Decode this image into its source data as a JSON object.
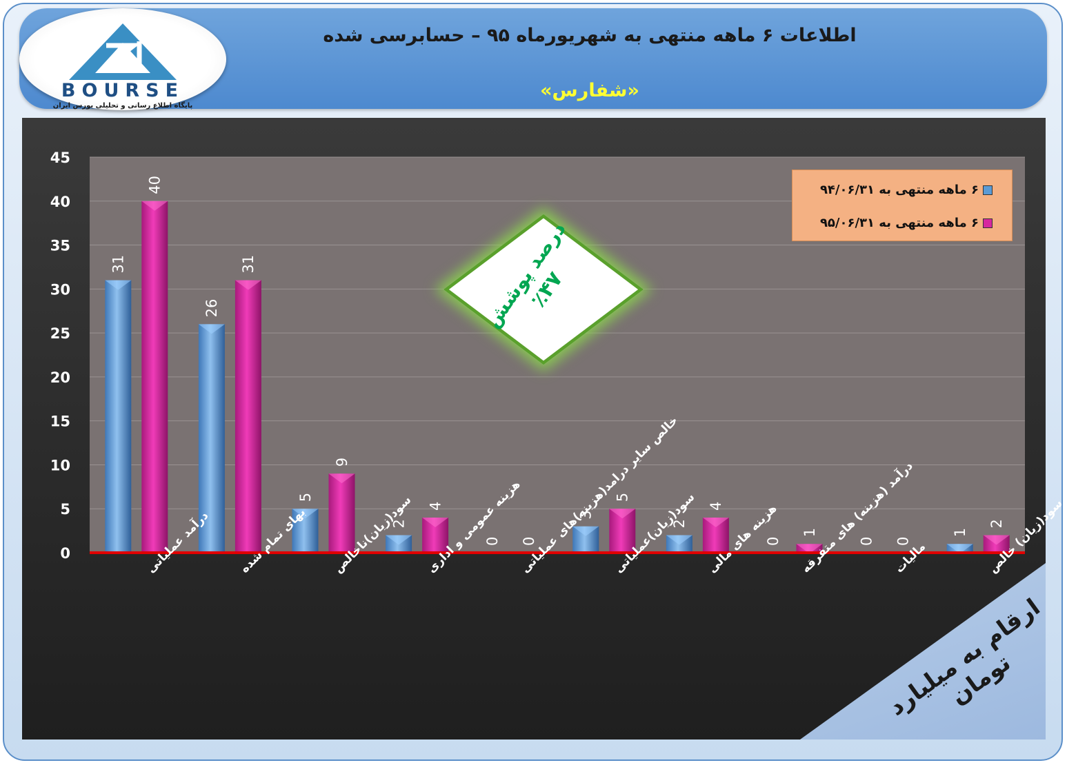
{
  "header": {
    "title": "اطلاعات ۶  ماهه منتهی به شهریورماه ۹۵ – حسابرسی شده",
    "subtitle": "«شفارس»"
  },
  "logo": {
    "word": "BOURSE",
    "tagline": "پایگاه اطلاع رسانی و تحلیلی بورس ایران"
  },
  "badge": {
    "line1": "درصد پوشش",
    "line2": "٪۴۷"
  },
  "corner_note": "ارقام به میلیارد تومان",
  "colors": {
    "series1": "#5b9bd5",
    "series2": "#d6279f",
    "baseline": "#e00000",
    "plot_bg": "#7a7272",
    "legend_bg": "#f4b183"
  },
  "chart_data": {
    "type": "bar",
    "ylim": [
      0,
      45
    ],
    "yticks": [
      0,
      5,
      10,
      15,
      20,
      25,
      30,
      35,
      40,
      45
    ],
    "grid": true,
    "legend_position": "top-right",
    "categories": [
      "درآمد عملیاتی",
      "بهای تمام شده",
      "سود(زیان)ناخالص",
      "هزینه عمومی و اداری",
      "خالص سایر درامد(هزینه)های عملیاتی",
      "سود(زیان)عملیاتی",
      "هزینه های مالی",
      "درآمد (هزینه) های متفرقه",
      "مالیات",
      "سود(زیان) خالص"
    ],
    "series": [
      {
        "name": "۶ ماهه منتهی به ۹۴/۰۶/۳۱",
        "values": [
          31,
          26,
          5,
          2,
          0,
          3,
          2,
          0,
          0,
          1
        ]
      },
      {
        "name": "۶ ماهه منتهی به ۹۵/۰۶/۳۱",
        "values": [
          40,
          31,
          9,
          4,
          0,
          5,
          4,
          1,
          0,
          2
        ]
      }
    ]
  }
}
